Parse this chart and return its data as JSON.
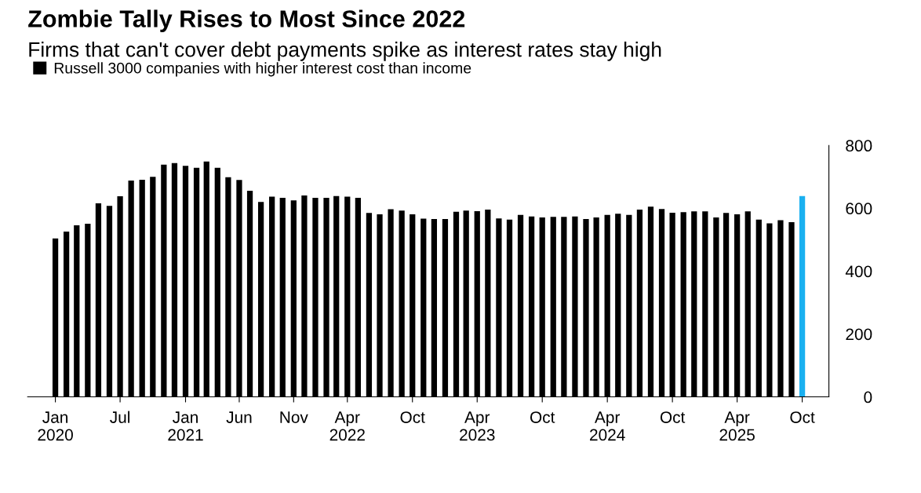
{
  "chart_data": {
    "type": "bar",
    "title": "Zombie Tally Rises to Most Since 2022",
    "subtitle": "Firms that can't cover debt payments spike as interest rates stay high",
    "x": [
      "2020-01",
      "2020-02",
      "2020-03",
      "2020-04",
      "2020-05",
      "2020-06",
      "2020-07",
      "2020-08",
      "2020-09",
      "2020-10",
      "2020-11",
      "2020-12",
      "2021-01",
      "2021-02",
      "2021-03",
      "2021-04",
      "2021-05",
      "2021-06",
      "2021-07",
      "2021-08",
      "2021-09",
      "2021-10",
      "2021-11",
      "2021-12",
      "2022-01",
      "2022-02",
      "2022-03",
      "2022-04",
      "2022-05",
      "2022-06",
      "2022-07",
      "2022-08",
      "2022-09",
      "2022-10",
      "2022-11",
      "2022-12",
      "2023-01",
      "2023-02",
      "2023-03",
      "2023-04",
      "2023-05",
      "2023-06",
      "2023-07",
      "2023-08",
      "2023-09",
      "2023-10",
      "2023-11",
      "2023-12",
      "2024-01",
      "2024-02",
      "2024-03",
      "2024-04",
      "2024-05",
      "2024-06",
      "2024-07",
      "2024-08",
      "2024-09",
      "2024-10",
      "2024-11",
      "2024-12",
      "2025-01",
      "2025-02",
      "2025-03",
      "2025-04",
      "2025-05",
      "2025-06",
      "2025-07",
      "2025-08",
      "2025-09",
      "2025-10"
    ],
    "series": [
      {
        "name": "Russell 3000 companies with higher interest cost than income",
        "color": "#000000",
        "colors": [
          "#000000",
          "#000000",
          "#000000",
          "#000000",
          "#000000",
          "#000000",
          "#000000",
          "#000000",
          "#000000",
          "#000000",
          "#000000",
          "#000000",
          "#000000",
          "#000000",
          "#000000",
          "#000000",
          "#000000",
          "#000000",
          "#000000",
          "#000000",
          "#000000",
          "#000000",
          "#000000",
          "#000000",
          "#000000",
          "#000000",
          "#000000",
          "#000000",
          "#000000",
          "#000000",
          "#000000",
          "#000000",
          "#000000",
          "#000000",
          "#000000",
          "#000000",
          "#000000",
          "#000000",
          "#000000",
          "#000000",
          "#000000",
          "#000000",
          "#000000",
          "#000000",
          "#000000",
          "#000000",
          "#000000",
          "#000000",
          "#000000",
          "#000000",
          "#000000",
          "#000000",
          "#000000",
          "#000000",
          "#000000",
          "#000000",
          "#000000",
          "#000000",
          "#000000",
          "#000000",
          "#000000",
          "#000000",
          "#000000",
          "#000000",
          "#000000",
          "#000000",
          "#000000",
          "#000000",
          "#000000",
          "#1ab0f0"
        ],
        "values": [
          504,
          526,
          546,
          551,
          616,
          608,
          638,
          688,
          691,
          700,
          739,
          744,
          735,
          729,
          749,
          729,
          699,
          690,
          656,
          620,
          637,
          633,
          625,
          641,
          633,
          633,
          639,
          637,
          633,
          585,
          581,
          597,
          593,
          581,
          567,
          566,
          566,
          589,
          593,
          591,
          596,
          568,
          564,
          579,
          574,
          571,
          573,
          573,
          574,
          566,
          571,
          579,
          583,
          579,
          596,
          605,
          598,
          586,
          588,
          590,
          590,
          571,
          585,
          581,
          590,
          564,
          552,
          562,
          556,
          639
        ]
      }
    ],
    "xlim": [
      "2019-10-15",
      "2025-12-15"
    ],
    "xticks": [
      {
        "value": "2020-01",
        "label": "Jan\n2020"
      },
      {
        "value": "2020-07",
        "label": "Jul"
      },
      {
        "value": "2021-01",
        "label": "Jan\n2021"
      },
      {
        "value": "2021-06",
        "label": "Jun"
      },
      {
        "value": "2021-11",
        "label": "Nov"
      },
      {
        "value": "2022-04",
        "label": "Apr\n2022"
      },
      {
        "value": "2022-10",
        "label": "Oct"
      },
      {
        "value": "2023-04",
        "label": "Apr\n2023"
      },
      {
        "value": "2023-10",
        "label": "Oct"
      },
      {
        "value": "2024-04",
        "label": "Apr\n2024"
      },
      {
        "value": "2024-10",
        "label": "Oct"
      },
      {
        "value": "2025-04",
        "label": "Apr\n2025"
      },
      {
        "value": "2025-10",
        "label": "Oct"
      }
    ],
    "ylim": [
      0,
      800
    ],
    "yticks": [
      0,
      200,
      400,
      600,
      800
    ],
    "grid": false,
    "legend": "top left"
  }
}
